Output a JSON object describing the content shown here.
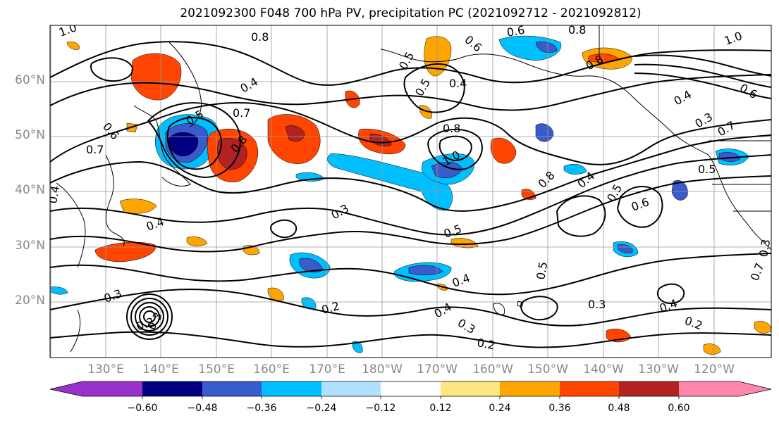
{
  "title": "2021092300 F048 700 hPa PV, precipitation PC (2021092712 - 2021092812)",
  "lat_labels": [
    "60°N",
    "50°N",
    "40°N",
    "30°N",
    "20°N"
  ],
  "lon_labels": [
    "130°E",
    "140°E",
    "150°E",
    "160°E",
    "170°E",
    "180°W",
    "170°W",
    "160°W",
    "150°W",
    "140°W",
    "130°W",
    "120°W"
  ],
  "colorbar": {
    "ticks": [
      "−0.60",
      "−0.48",
      "−0.36",
      "−0.24",
      "−0.12",
      "0.12",
      "0.24",
      "0.36",
      "0.48",
      "0.60"
    ],
    "colors": [
      "#9932cc",
      "#000080",
      "#3a5bcc",
      "#00bfff",
      "#b0e2ff",
      "#ffffff",
      "#ffe680",
      "#ffa500",
      "#ff4500",
      "#b22222",
      "#ff88aa"
    ]
  },
  "contour_labels": [
    "1.0",
    "0.8",
    "0.8",
    "0.6",
    "1.0",
    "0.4",
    "0.5",
    "0.7",
    "0.8",
    "0.6",
    "0.7",
    "0.5",
    "0.5",
    "0.4",
    "0.8",
    "1.0",
    "0.6",
    "0.8",
    "0.4",
    "0.7",
    "0.8",
    "0.4",
    "0.3",
    "0.6",
    "0.5",
    "0.4",
    "0.5",
    "0.6",
    "0.4",
    "0.3",
    "0.5",
    "0.2",
    "0.4",
    "0.3",
    "0.3",
    "0.2",
    "0.4",
    "0.3",
    "0.2",
    "0.2",
    "0.3",
    "0.5",
    "0.4",
    "0.7",
    "0.3"
  ]
}
